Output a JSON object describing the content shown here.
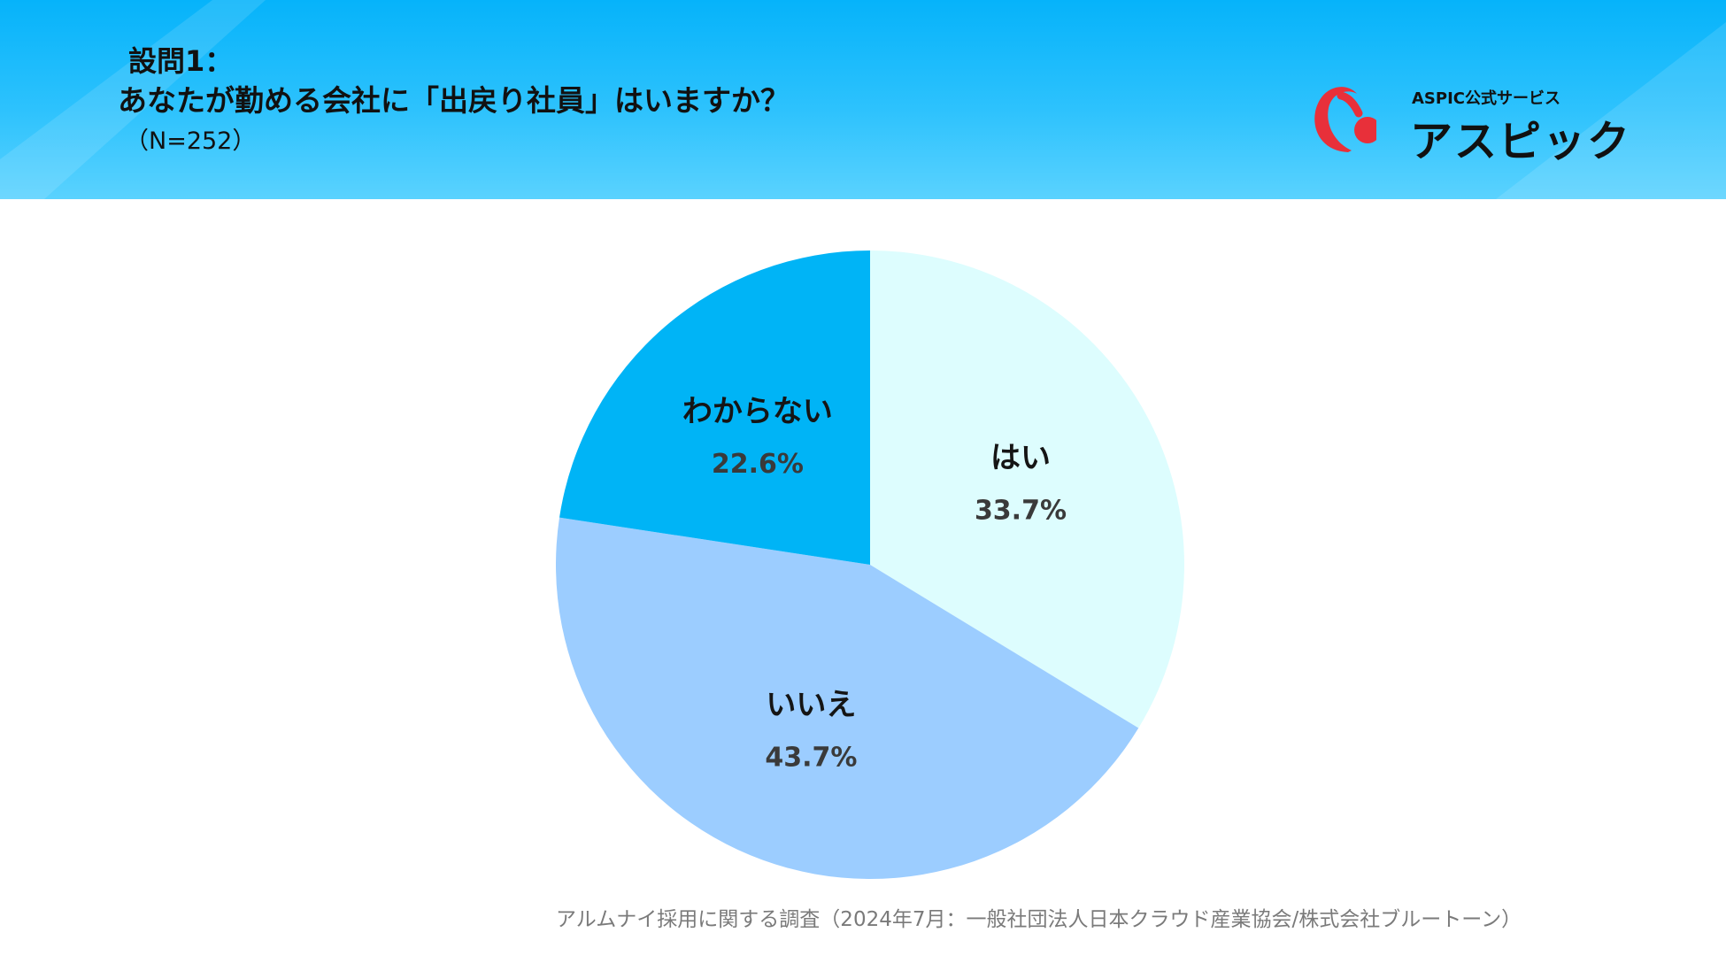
{
  "header": {
    "question_no": "設問1：",
    "question_text": "あなたが勤める会社に「出戻り社員」はいますか？",
    "sample_size": "（N=252）"
  },
  "logo": {
    "service_label": "ASPIC公式サービス",
    "name": "アスピック"
  },
  "colors": {
    "header_top": "#06b3fa",
    "header_bottom": "#5ad2fe",
    "yes": "#ddfdfe",
    "no": "#9ccdff",
    "unknown": "#00b4f6",
    "logo_red": "#e8303a"
  },
  "chart_data": {
    "type": "pie",
    "title": "あなたが勤める会社に「出戻り社員」はいますか？",
    "start": "12 o'clock, clockwise",
    "slices": [
      {
        "label": "はい",
        "value": 33.7,
        "display": "33.7%",
        "color": "#ddfdfe"
      },
      {
        "label": "いいえ",
        "value": 43.7,
        "display": "43.7%",
        "color": "#9ccdff"
      },
      {
        "label": "わからない",
        "value": 22.6,
        "display": "22.6%",
        "color": "#00b4f6"
      }
    ]
  },
  "footer": {
    "source": "アルムナイ採用に関する調査（2024年7月：一般社団法人日本クラウド産業協会/株式会社ブルートーン）"
  }
}
